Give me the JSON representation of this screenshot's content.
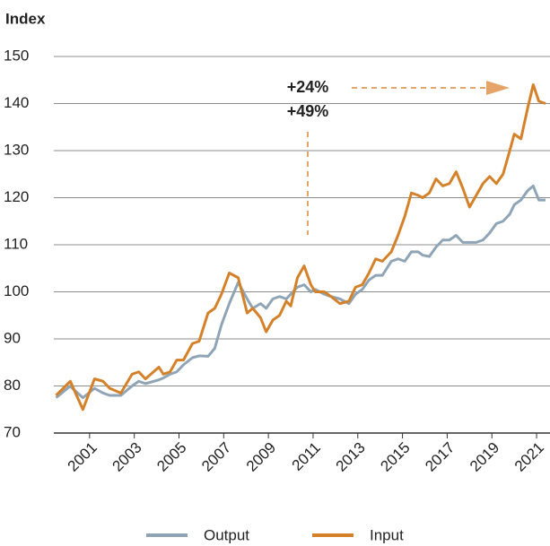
{
  "chart_data": {
    "type": "line",
    "title": "Index",
    "x": [
      1999.5,
      2000.14,
      2000.23,
      2000.7,
      2001.22,
      2001.6,
      2001.9,
      2002.4,
      2002.9,
      2003.2,
      2003.5,
      2004.1,
      2004.3,
      2004.6,
      2004.9,
      2005.2,
      2005.6,
      2005.9,
      2006.3,
      2006.6,
      2006.9,
      2007.25,
      2007.65,
      2008.05,
      2008.3,
      2008.65,
      2008.9,
      2009.2,
      2009.5,
      2009.8,
      2010.0,
      2010.3,
      2010.6,
      2010.9,
      2011.1,
      2011.5,
      2011.8,
      2012.2,
      2012.6,
      2012.9,
      2013.2,
      2013.5,
      2013.8,
      2014.1,
      2014.5,
      2014.8,
      2015.1,
      2015.4,
      2015.7,
      2015.9,
      2016.2,
      2016.5,
      2016.8,
      2017.1,
      2017.4,
      2017.7,
      2018.0,
      2018.3,
      2018.6,
      2018.9,
      2019.2,
      2019.5,
      2019.8,
      2020.0,
      2020.3,
      2020.6,
      2020.85,
      2021.1,
      2021.4
    ],
    "series": [
      {
        "name": "Output",
        "color": "#8fa5b6",
        "values": [
          77.5,
          80,
          79.5,
          77.5,
          79.5,
          78.5,
          78,
          78,
          80,
          81,
          80.5,
          81.3,
          81.7,
          82.5,
          83,
          84.5,
          86,
          86.4,
          86.3,
          88,
          93,
          97.5,
          102,
          98.5,
          96.5,
          97.5,
          96.5,
          98.5,
          99,
          98.5,
          99.5,
          101,
          101.5,
          100,
          100.5,
          99.5,
          99,
          98.5,
          97.5,
          99.5,
          100.5,
          102.5,
          103.5,
          103.5,
          106.5,
          107,
          106.5,
          108.5,
          108.5,
          107.8,
          107.5,
          109.5,
          111,
          111,
          112,
          110.5,
          110.5,
          110.5,
          111,
          112.5,
          114.5,
          115,
          116.5,
          118.5,
          119.5,
          121.5,
          122.5,
          119.5,
          119.5
        ]
      },
      {
        "name": "Input",
        "color": "#d4812a",
        "values": [
          78,
          81,
          80,
          75,
          81.5,
          81,
          79.5,
          78.5,
          82.5,
          83,
          81.5,
          84,
          82.5,
          83,
          85.5,
          85.5,
          89,
          89.5,
          95.5,
          96.5,
          99.5,
          104,
          103,
          95.5,
          96.5,
          94.5,
          91.5,
          94,
          95,
          98,
          97,
          103,
          105.5,
          101.5,
          100,
          100,
          99,
          97.5,
          98,
          101,
          101.5,
          104,
          107,
          106.5,
          108.5,
          112,
          116,
          121,
          120.5,
          120,
          121,
          124,
          122.5,
          123,
          125.5,
          122,
          118,
          120.5,
          123,
          124.5,
          123,
          125,
          130,
          133.5,
          132.5,
          139,
          144,
          140.5,
          140
        ]
      }
    ],
    "xlim": [
      1999.4,
      2021.6
    ],
    "xticks": [
      2001,
      2003,
      2005,
      2007,
      2009,
      2011,
      2013,
      2015,
      2017,
      2019,
      2021
    ],
    "ylim": [
      70,
      150
    ],
    "yticks": [
      70,
      80,
      90,
      100,
      110,
      120,
      130,
      140,
      150
    ],
    "grid": true,
    "annotations": [
      {
        "text": "+24%",
        "color": "#8fa5b6"
      },
      {
        "text": "+49%",
        "color": "#d4812a"
      }
    ]
  }
}
